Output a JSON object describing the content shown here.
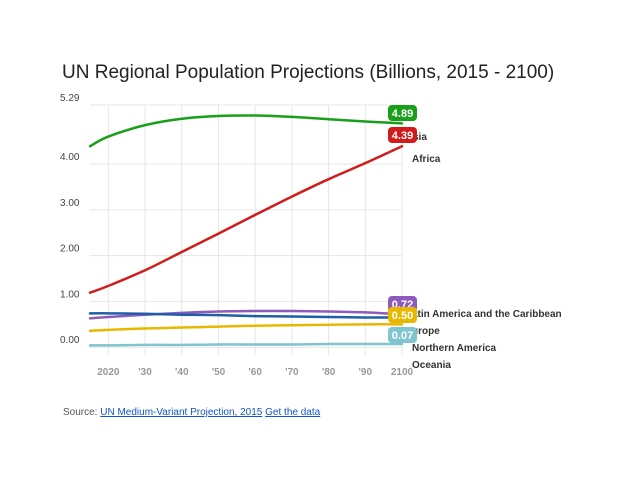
{
  "chart_data": {
    "type": "line",
    "title": "UN Regional Population Projections (Billions, 2015 - 2100)",
    "xlabel": "",
    "ylabel": "",
    "xlim": [
      2015,
      2100
    ],
    "ylim": [
      -0.17,
      5.29
    ],
    "x_ticks": [
      {
        "value": 2020,
        "label": "2020"
      },
      {
        "value": 2030,
        "label": "'30"
      },
      {
        "value": 2040,
        "label": "'40"
      },
      {
        "value": 2050,
        "label": "'50"
      },
      {
        "value": 2060,
        "label": "'60"
      },
      {
        "value": 2070,
        "label": "'70"
      },
      {
        "value": 2080,
        "label": "'80"
      },
      {
        "value": 2090,
        "label": "'90"
      },
      {
        "value": 2100,
        "label": "2100"
      }
    ],
    "y_ticks": [
      {
        "value": 0,
        "label": "0.00"
      },
      {
        "value": 1,
        "label": "1.00"
      },
      {
        "value": 2,
        "label": "2.00"
      },
      {
        "value": 3,
        "label": "3.00"
      },
      {
        "value": 4,
        "label": "4.00"
      },
      {
        "value": 5.29,
        "label": "5.29"
      }
    ],
    "x": [
      2015,
      2020,
      2030,
      2040,
      2050,
      2060,
      2070,
      2080,
      2090,
      2100
    ],
    "series": [
      {
        "name": "Asia",
        "color": "#1a9f1a",
        "values": [
          4.39,
          4.6,
          4.85,
          4.99,
          5.05,
          5.06,
          5.03,
          4.98,
          4.93,
          4.89
        ],
        "end_label": "4.89",
        "label_text": "sia"
      },
      {
        "name": "Africa",
        "color": "#d21c1c",
        "values": [
          1.19,
          1.34,
          1.68,
          2.08,
          2.48,
          2.89,
          3.29,
          3.67,
          4.02,
          4.39
        ],
        "end_label": "4.39",
        "label_text": "Africa"
      },
      {
        "name": "Latin America and the Caribbean",
        "color": "#8e5bbd",
        "values": [
          0.63,
          0.66,
          0.71,
          0.75,
          0.78,
          0.79,
          0.79,
          0.78,
          0.76,
          0.72
        ],
        "end_label": "0.72",
        "label_text": "atin America and the Caribbean"
      },
      {
        "name": "Europe",
        "color": "#e8b800",
        "values": [
          0.36,
          0.38,
          0.41,
          0.43,
          0.45,
          0.47,
          0.48,
          0.49,
          0.5,
          0.5
        ],
        "end_label": "0.50",
        "label_text": "urope"
      },
      {
        "name": "Northern America",
        "color": "#1f5fa8",
        "values": [
          0.74,
          0.74,
          0.73,
          0.71,
          0.7,
          0.68,
          0.67,
          0.66,
          0.65,
          0.65
        ],
        "end_label": null,
        "label_text": "Northern America"
      },
      {
        "name": "Oceania",
        "color": "#7fc4cf",
        "values": [
          0.04,
          0.04,
          0.05,
          0.05,
          0.06,
          0.06,
          0.06,
          0.07,
          0.07,
          0.07
        ],
        "end_label": "0.07",
        "label_text": "Oceania"
      }
    ]
  },
  "source": {
    "prefix": "Source: ",
    "link_text": "UN Medium-Variant Projection, 2015",
    "get_data_text": "Get the data"
  }
}
